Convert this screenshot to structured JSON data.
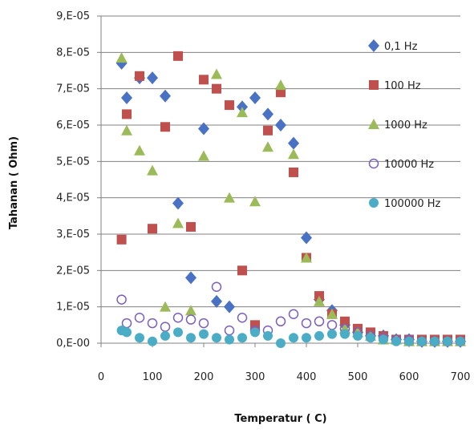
{
  "chart_data": {
    "type": "scatter",
    "xlabel": "Temperatur ( C)",
    "ylabel": "Tahanan ( Ohm)",
    "xlim": [
      0,
      700
    ],
    "ylim": [
      0,
      9e-05
    ],
    "x_ticks": [
      "0",
      "100",
      "200",
      "300",
      "400",
      "500",
      "600",
      "700"
    ],
    "y_ticks": [
      "0,E-00",
      "1,E-05",
      "2,E-05",
      "3,E-05",
      "4,E-05",
      "5,E-05",
      "6,E-05",
      "7,E-05",
      "8,E-05",
      "9,E-05"
    ],
    "grid": "horizontal",
    "legend_position": "right",
    "series": [
      {
        "name": "0,1 Hz",
        "marker": "diamond",
        "color": "#4a72c4",
        "points": [
          [
            40,
            7.7e-05
          ],
          [
            50,
            6.75e-05
          ],
          [
            75,
            7.3e-05
          ],
          [
            100,
            7.3e-05
          ],
          [
            125,
            6.8e-05
          ],
          [
            150,
            3.85e-05
          ],
          [
            175,
            1.8e-05
          ],
          [
            200,
            5.9e-05
          ],
          [
            225,
            1.15e-05
          ],
          [
            250,
            1e-05
          ],
          [
            275,
            6.5e-05
          ],
          [
            300,
            6.75e-05
          ],
          [
            325,
            6.3e-05
          ],
          [
            350,
            6e-05
          ],
          [
            375,
            5.5e-05
          ],
          [
            400,
            2.9e-05
          ],
          [
            425,
            1.2e-05
          ],
          [
            450,
            9e-06
          ],
          [
            475,
            5e-06
          ],
          [
            500,
            3e-06
          ],
          [
            525,
            2e-06
          ],
          [
            550,
            2e-06
          ],
          [
            575,
            1e-06
          ],
          [
            600,
            1e-06
          ],
          [
            625,
            5e-07
          ],
          [
            650,
            5e-07
          ],
          [
            675,
            5e-07
          ],
          [
            700,
            5e-07
          ]
        ]
      },
      {
        "name": "100 Hz",
        "marker": "square",
        "color": "#c0504d",
        "points": [
          [
            40,
            2.85e-05
          ],
          [
            50,
            6.3e-05
          ],
          [
            75,
            7.35e-05
          ],
          [
            100,
            3.15e-05
          ],
          [
            125,
            5.95e-05
          ],
          [
            150,
            7.9e-05
          ],
          [
            175,
            3.2e-05
          ],
          [
            200,
            7.25e-05
          ],
          [
            225,
            7e-05
          ],
          [
            250,
            6.55e-05
          ],
          [
            275,
            2e-05
          ],
          [
            300,
            5e-06
          ],
          [
            325,
            5.85e-05
          ],
          [
            350,
            6.9e-05
          ],
          [
            375,
            4.7e-05
          ],
          [
            400,
            2.35e-05
          ],
          [
            425,
            1.3e-05
          ],
          [
            450,
            8e-06
          ],
          [
            475,
            6e-06
          ],
          [
            500,
            4e-06
          ],
          [
            525,
            3e-06
          ],
          [
            550,
            2e-06
          ],
          [
            575,
            1e-06
          ],
          [
            600,
            1e-06
          ],
          [
            625,
            1e-06
          ],
          [
            650,
            1e-06
          ],
          [
            675,
            1e-06
          ],
          [
            700,
            1e-06
          ]
        ]
      },
      {
        "name": "1000 Hz",
        "marker": "triangle",
        "color": "#9bbb59",
        "points": [
          [
            40,
            7.85e-05
          ],
          [
            50,
            5.85e-05
          ],
          [
            75,
            5.3e-05
          ],
          [
            100,
            4.75e-05
          ],
          [
            125,
            1e-05
          ],
          [
            150,
            3.3e-05
          ],
          [
            175,
            9e-06
          ],
          [
            200,
            5.15e-05
          ],
          [
            225,
            7.4e-05
          ],
          [
            250,
            4e-05
          ],
          [
            275,
            6.35e-05
          ],
          [
            300,
            3.9e-05
          ],
          [
            325,
            5.4e-05
          ],
          [
            350,
            7.1e-05
          ],
          [
            375,
            5.2e-05
          ],
          [
            400,
            2.35e-05
          ],
          [
            425,
            1.15e-05
          ],
          [
            450,
            8e-06
          ],
          [
            475,
            4e-06
          ],
          [
            500,
            3e-06
          ],
          [
            525,
            2e-06
          ],
          [
            550,
            1e-06
          ],
          [
            575,
            1e-06
          ],
          [
            600,
            5e-07
          ],
          [
            625,
            5e-07
          ],
          [
            650,
            5e-07
          ],
          [
            675,
            5e-07
          ],
          [
            700,
            5e-07
          ]
        ]
      },
      {
        "name": "10000 Hz",
        "marker": "circle-open",
        "color": "#7b5fbd",
        "points": [
          [
            40,
            1.2e-05
          ],
          [
            50,
            5.5e-06
          ],
          [
            75,
            7e-06
          ],
          [
            100,
            5.5e-06
          ],
          [
            125,
            4.5e-06
          ],
          [
            150,
            7e-06
          ],
          [
            175,
            6.5e-06
          ],
          [
            200,
            5.5e-06
          ],
          [
            225,
            1.55e-05
          ],
          [
            250,
            3.5e-06
          ],
          [
            275,
            7e-06
          ],
          [
            300,
            3.5e-06
          ],
          [
            325,
            3.5e-06
          ],
          [
            350,
            6e-06
          ],
          [
            375,
            8e-06
          ],
          [
            400,
            5.5e-06
          ],
          [
            425,
            6e-06
          ],
          [
            450,
            5e-06
          ],
          [
            475,
            4e-06
          ],
          [
            500,
            3e-06
          ],
          [
            525,
            2e-06
          ],
          [
            550,
            1.5e-06
          ],
          [
            575,
            1e-06
          ],
          [
            600,
            1e-06
          ],
          [
            625,
            5e-07
          ],
          [
            650,
            5e-07
          ],
          [
            675,
            5e-07
          ],
          [
            700,
            5e-07
          ]
        ]
      },
      {
        "name": "100000 Hz",
        "marker": "circle",
        "color": "#4bacc6",
        "points": [
          [
            40,
            3.5e-06
          ],
          [
            50,
            3e-06
          ],
          [
            75,
            1.5e-06
          ],
          [
            100,
            5e-07
          ],
          [
            125,
            2e-06
          ],
          [
            150,
            3e-06
          ],
          [
            175,
            1.5e-06
          ],
          [
            200,
            2.5e-06
          ],
          [
            225,
            1.5e-06
          ],
          [
            250,
            1e-06
          ],
          [
            275,
            1.5e-06
          ],
          [
            300,
            3e-06
          ],
          [
            325,
            2e-06
          ],
          [
            350,
            0
          ],
          [
            375,
            1.5e-06
          ],
          [
            400,
            1.5e-06
          ],
          [
            425,
            2e-06
          ],
          [
            450,
            2.5e-06
          ],
          [
            475,
            2.5e-06
          ],
          [
            500,
            2e-06
          ],
          [
            525,
            1.5e-06
          ],
          [
            550,
            1e-06
          ],
          [
            575,
            5e-07
          ],
          [
            600,
            5e-07
          ],
          [
            625,
            5e-07
          ],
          [
            650,
            5e-07
          ],
          [
            675,
            5e-07
          ],
          [
            700,
            5e-07
          ]
        ]
      }
    ]
  }
}
